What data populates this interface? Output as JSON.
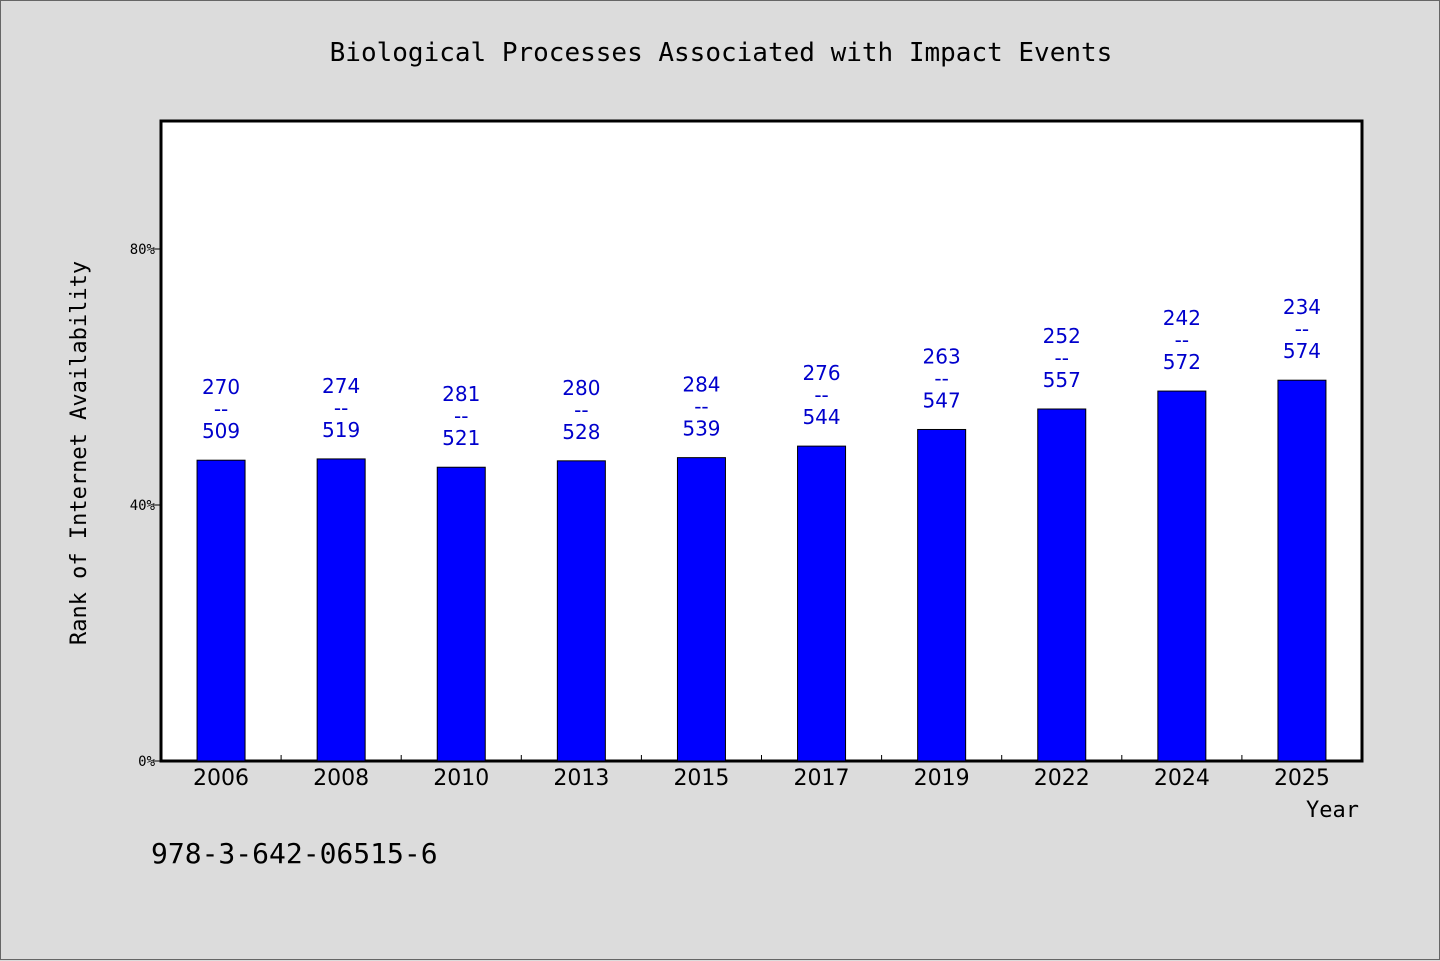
{
  "chart_data": {
    "type": "bar",
    "title": "Biological Processes Associated with Impact Events",
    "xlabel": "Year",
    "ylabel": "Rank of Internet Availability",
    "categories": [
      "2006",
      "2008",
      "2010",
      "2013",
      "2015",
      "2017",
      "2019",
      "2022",
      "2024",
      "2025"
    ],
    "values": [
      47.0,
      47.2,
      45.9,
      46.9,
      47.4,
      49.2,
      51.8,
      55.0,
      57.8,
      59.5
    ],
    "numerators": [
      "270",
      "274",
      "281",
      "280",
      "284",
      "276",
      "263",
      "252",
      "242",
      "234"
    ],
    "denominators": [
      "509",
      "519",
      "521",
      "528",
      "539",
      "544",
      "547",
      "557",
      "572",
      "574"
    ],
    "separator": "--",
    "ylim": [
      0,
      100
    ],
    "yticks": [
      0,
      40,
      80
    ],
    "ytick_labels": [
      "0%",
      "40%",
      "80%"
    ],
    "bar_color": "#0000ff",
    "label_color": "#0000cc",
    "grid": false
  },
  "footnote": "978-3-642-06515-6"
}
